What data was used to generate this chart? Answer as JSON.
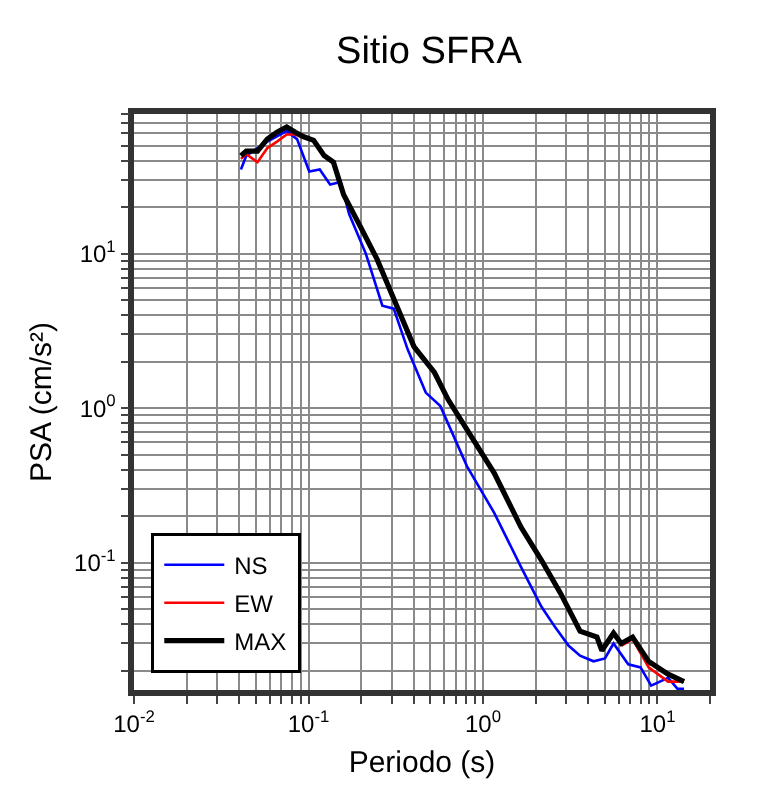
{
  "chart_data": {
    "type": "line",
    "title": "Sitio SFRA",
    "xlabel": "Periodo (s)",
    "ylabel": "PSA (cm/s²)",
    "log": "xy",
    "grid": true,
    "legend": "bottom left",
    "line_style": "solid",
    "marker": "none",
    "xlim": [
      0.01,
      20
    ],
    "ylim": [
      0.015,
      80
    ],
    "xticks": [
      {
        "value": 0.01,
        "label": "10$^{-2}$"
      },
      {
        "value": 0.02,
        "label": null
      },
      {
        "value": 0.03,
        "label": null
      },
      {
        "value": 0.04,
        "label": null
      },
      {
        "value": 0.05,
        "label": null
      },
      {
        "value": 0.06,
        "label": null
      },
      {
        "value": 0.07,
        "label": null
      },
      {
        "value": 0.08,
        "label": null
      },
      {
        "value": 0.09,
        "label": null
      },
      {
        "value": 0.1,
        "label": "10$^{-1}$"
      },
      {
        "value": 0.2,
        "label": null
      },
      {
        "value": 0.3,
        "label": null
      },
      {
        "value": 0.4,
        "label": null
      },
      {
        "value": 0.5,
        "label": null
      },
      {
        "value": 0.6,
        "label": null
      },
      {
        "value": 0.7,
        "label": null
      },
      {
        "value": 0.8,
        "label": null
      },
      {
        "value": 0.9,
        "label": null
      },
      {
        "value": 1,
        "label": "10$^{0}$"
      },
      {
        "value": 2,
        "label": null
      },
      {
        "value": 3,
        "label": null
      },
      {
        "value": 4,
        "label": null
      },
      {
        "value": 5,
        "label": null
      },
      {
        "value": 6,
        "label": null
      },
      {
        "value": 7,
        "label": null
      },
      {
        "value": 8,
        "label": null
      },
      {
        "value": 9,
        "label": null
      },
      {
        "value": 10,
        "label": "10$^{1}$"
      },
      {
        "value": 20,
        "label": null
      }
    ],
    "yticks": [
      {
        "value": 0.02,
        "label": null
      },
      {
        "value": 0.03,
        "label": null
      },
      {
        "value": 0.04,
        "label": null
      },
      {
        "value": 0.05,
        "label": null
      },
      {
        "value": 0.06,
        "label": null
      },
      {
        "value": 0.07,
        "label": null
      },
      {
        "value": 0.08,
        "label": null
      },
      {
        "value": 0.09,
        "label": null
      },
      {
        "value": 0.1,
        "label": "10$^{-1}$"
      },
      {
        "value": 0.2,
        "label": null
      },
      {
        "value": 0.3,
        "label": null
      },
      {
        "value": 0.4,
        "label": null
      },
      {
        "value": 0.5,
        "label": null
      },
      {
        "value": 0.6,
        "label": null
      },
      {
        "value": 0.7,
        "label": null
      },
      {
        "value": 0.8,
        "label": null
      },
      {
        "value": 0.9,
        "label": null
      },
      {
        "value": 1,
        "label": "10$^{0}$"
      },
      {
        "value": 2,
        "label": null
      },
      {
        "value": 3,
        "label": null
      },
      {
        "value": 4,
        "label": null
      },
      {
        "value": 5,
        "label": null
      },
      {
        "value": 6,
        "label": null
      },
      {
        "value": 7,
        "label": null
      },
      {
        "value": 8,
        "label": null
      },
      {
        "value": 9,
        "label": null
      },
      {
        "value": 10,
        "label": "10$^{1}$"
      },
      {
        "value": 20,
        "label": null
      },
      {
        "value": 30,
        "label": null
      },
      {
        "value": 40,
        "label": null
      },
      {
        "value": 50,
        "label": null
      },
      {
        "value": 60,
        "label": null
      },
      {
        "value": 70,
        "label": null
      },
      {
        "value": 80,
        "label": null
      }
    ],
    "series": [
      {
        "name": "NS",
        "color": "#0000ff",
        "x": [
          0.041,
          0.044,
          0.058,
          0.075,
          0.086,
          0.101,
          0.116,
          0.133,
          0.153,
          0.171,
          0.213,
          0.265,
          0.308,
          0.37,
          0.47,
          0.57,
          0.81,
          1.16,
          1.65,
          2.16,
          2.6,
          3.1,
          3.6,
          4.3,
          5.0,
          5.6,
          6.8,
          8.0,
          9.2,
          11.5,
          13,
          14.2
        ],
        "values": [
          35,
          43,
          53,
          62,
          55,
          34,
          35,
          28,
          29,
          18,
          10,
          4.6,
          4.4,
          2.4,
          1.26,
          1.03,
          0.42,
          0.21,
          0.094,
          0.052,
          0.038,
          0.029,
          0.025,
          0.023,
          0.024,
          0.03,
          0.022,
          0.021,
          0.016,
          0.018,
          0.0153,
          0.0153
        ]
      },
      {
        "name": "EW",
        "color": "#ff0000",
        "x": [
          0.041,
          0.044,
          0.051,
          0.058,
          0.066,
          0.075,
          0.084,
          0.094,
          0.107,
          0.123,
          0.139,
          0.159,
          0.198,
          0.247,
          0.308,
          0.402,
          0.527,
          0.63,
          1.16,
          1.65,
          2.16,
          2.79,
          3.6,
          4.5,
          4.8,
          5.6,
          6.2,
          7.2,
          8.9,
          11.5,
          14.2
        ],
        "values": [
          41,
          44,
          39,
          48,
          53,
          59,
          59,
          56,
          null,
          null,
          null,
          null,
          null,
          null,
          null,
          null,
          null,
          null,
          null,
          null,
          null,
          null,
          null,
          null,
          null,
          null,
          0.029,
          0.032,
          0.021,
          0.017,
          0.017
        ]
      },
      {
        "name": "MAX",
        "color": "#000000",
        "x": [
          0.041,
          0.044,
          0.051,
          0.058,
          0.066,
          0.075,
          0.084,
          0.094,
          0.107,
          0.123,
          0.139,
          0.159,
          0.198,
          0.247,
          0.308,
          0.402,
          0.527,
          0.63,
          1.16,
          1.65,
          2.16,
          2.79,
          3.6,
          4.5,
          4.8,
          5.6,
          6.2,
          7.2,
          8.9,
          11.5,
          14.2
        ],
        "values": [
          43,
          46,
          46,
          55,
          61,
          66,
          61,
          57,
          54,
          43,
          39,
          24,
          15,
          9.2,
          5.1,
          2.5,
          1.7,
          1.14,
          0.38,
          0.17,
          0.104,
          0.063,
          0.036,
          0.033,
          0.027,
          0.035,
          0.03,
          0.033,
          0.023,
          0.019,
          0.017
        ]
      }
    ]
  }
}
